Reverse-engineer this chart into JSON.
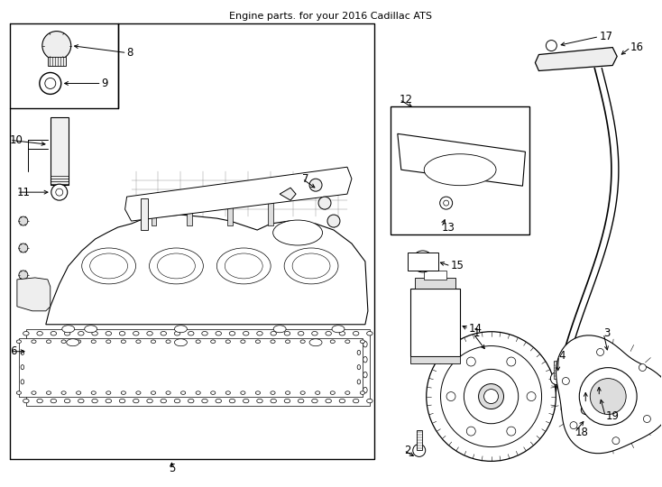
{
  "title": "Engine parts. for your 2016 Cadillac ATS",
  "bg": "#ffffff",
  "lc": "#000000",
  "fs": 8.5,
  "fig_w": 7.34,
  "fig_h": 5.4,
  "dpi": 100
}
